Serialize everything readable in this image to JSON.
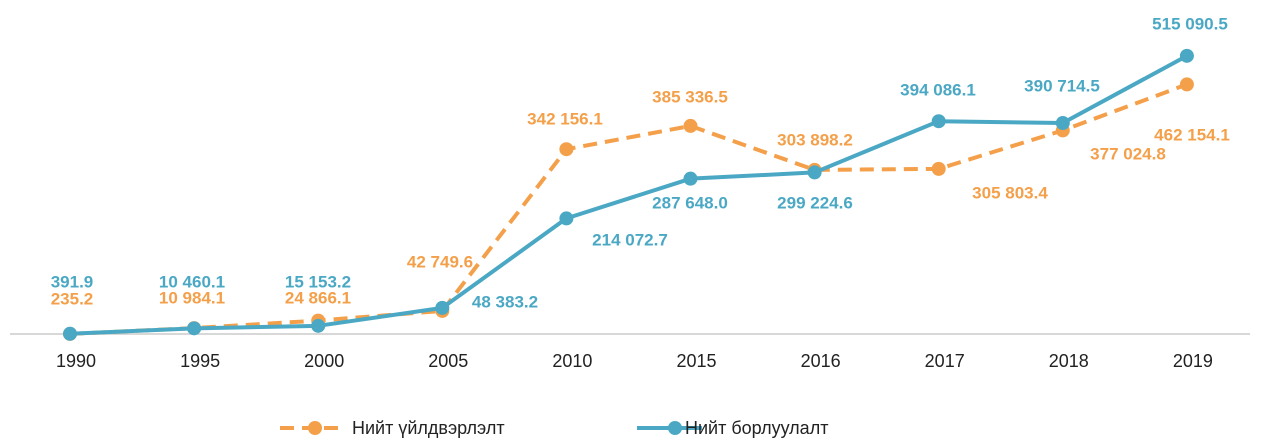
{
  "chart_data": {
    "type": "line",
    "categories": [
      "1990",
      "1995",
      "2000",
      "2005",
      "2010",
      "2015",
      "2016",
      "2017",
      "2018",
      "2019"
    ],
    "ylim": [
      0,
      600000
    ],
    "legend": "bottom",
    "series": [
      {
        "name": "Нийт үйлдвэрлэлт",
        "color": "#f4a04a",
        "dashed": true,
        "values": [
          235.2,
          10984.1,
          24866.1,
          42749.6,
          342156.1,
          385336.5,
          303898.2,
          305803.4,
          377024.8,
          462154.1
        ],
        "value_labels": [
          "235.2",
          "10 984.1",
          "24 866.1",
          "42 749.6",
          "342 156.1",
          "385 336.5",
          "303 898.2",
          "305 803.4",
          "377 024.8",
          "462 154.1"
        ]
      },
      {
        "name": "Нийт борлуулалт",
        "color": "#4aa8c4",
        "dashed": false,
        "values": [
          391.9,
          10460.1,
          15153.2,
          48383.2,
          214072.7,
          287648.0,
          299224.6,
          394086.1,
          390714.5,
          515090.5
        ],
        "value_labels": [
          "391.9",
          "10 460.1",
          "15 153.2",
          "48 383.2",
          "214 072.7",
          "287 648.0",
          "299 224.6",
          "394 086.1",
          "390 714.5",
          "515 090.5"
        ]
      }
    ]
  }
}
